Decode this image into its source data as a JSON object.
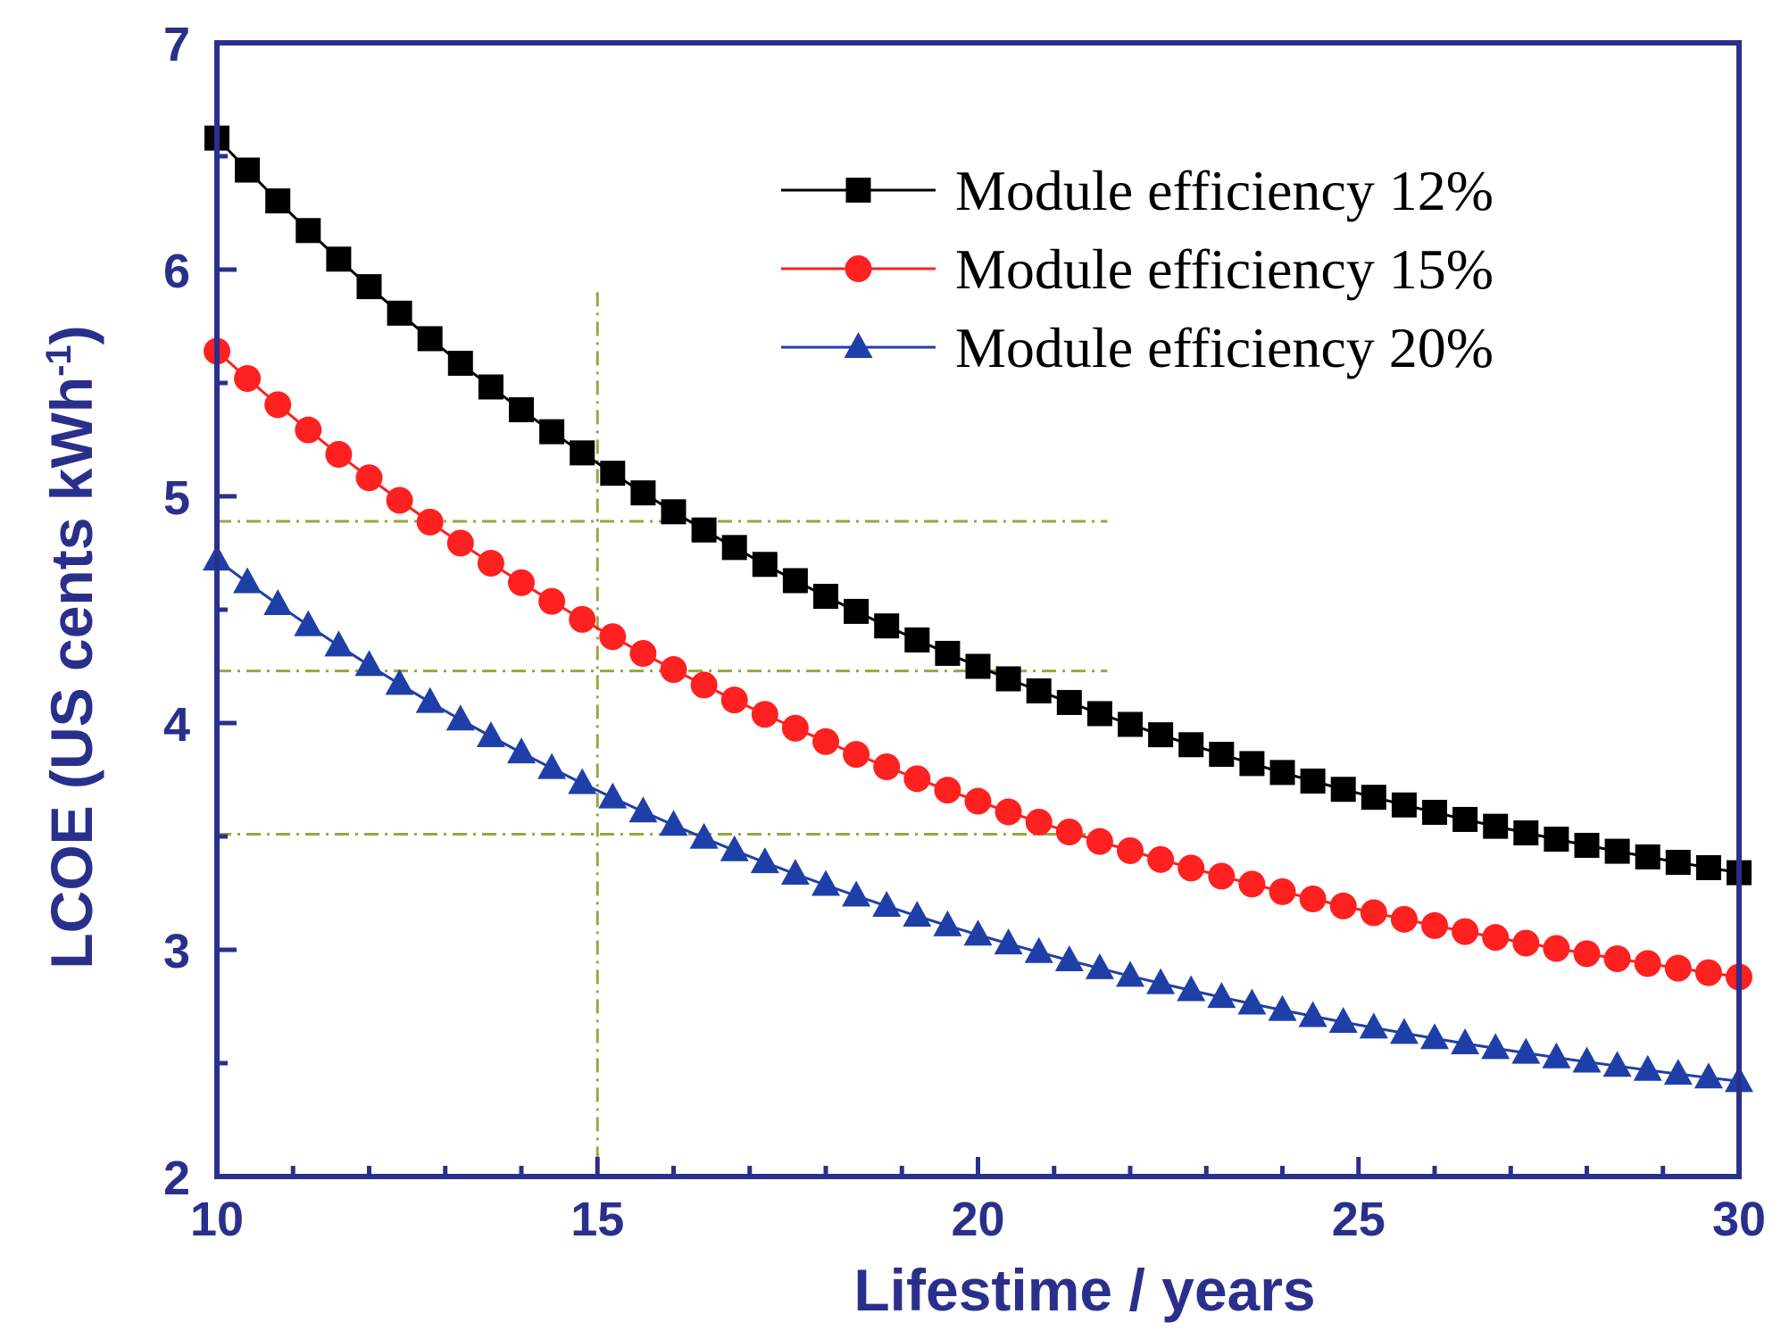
{
  "chart_data": {
    "type": "scatter",
    "title": "",
    "xlabel": "Lifestime / years",
    "ylabel_main": "LCOE (US cents kWh",
    "ylabel_sup": "-1",
    "ylabel_close": ")",
    "xlim": [
      10,
      30
    ],
    "ylim": [
      2,
      7
    ],
    "xticks": [
      10,
      15,
      20,
      25,
      30
    ],
    "yticks": [
      2,
      3,
      4,
      5,
      6,
      7
    ],
    "x_minor_step": 1,
    "y_minor_step": 0.5,
    "grid": false,
    "legend_position": "top-right",
    "axis_color": "#2b2f8c",
    "series": [
      {
        "name": "Module efficiency 12%",
        "marker": "square",
        "color": "#000000",
        "A": 6.58,
        "B": 3.34
      },
      {
        "name": "Module efficiency 15%",
        "marker": "circle",
        "color": "#ff2020",
        "A": 5.64,
        "B": 2.88
      },
      {
        "name": "Module efficiency 20%",
        "marker": "triangle",
        "color": "#1f3fa8",
        "A": 4.72,
        "B": 2.42
      }
    ],
    "x_points": {
      "start": 10,
      "end": 30,
      "step": 0.4,
      "curve_k": 0.094
    },
    "reference_lines": {
      "vertical_x": 15,
      "vertical_ymax": 5.9,
      "horizontal_y": [
        4.89,
        4.23,
        3.51
      ],
      "horizontal_xmax": 21.7,
      "color": "#9aa640"
    }
  }
}
